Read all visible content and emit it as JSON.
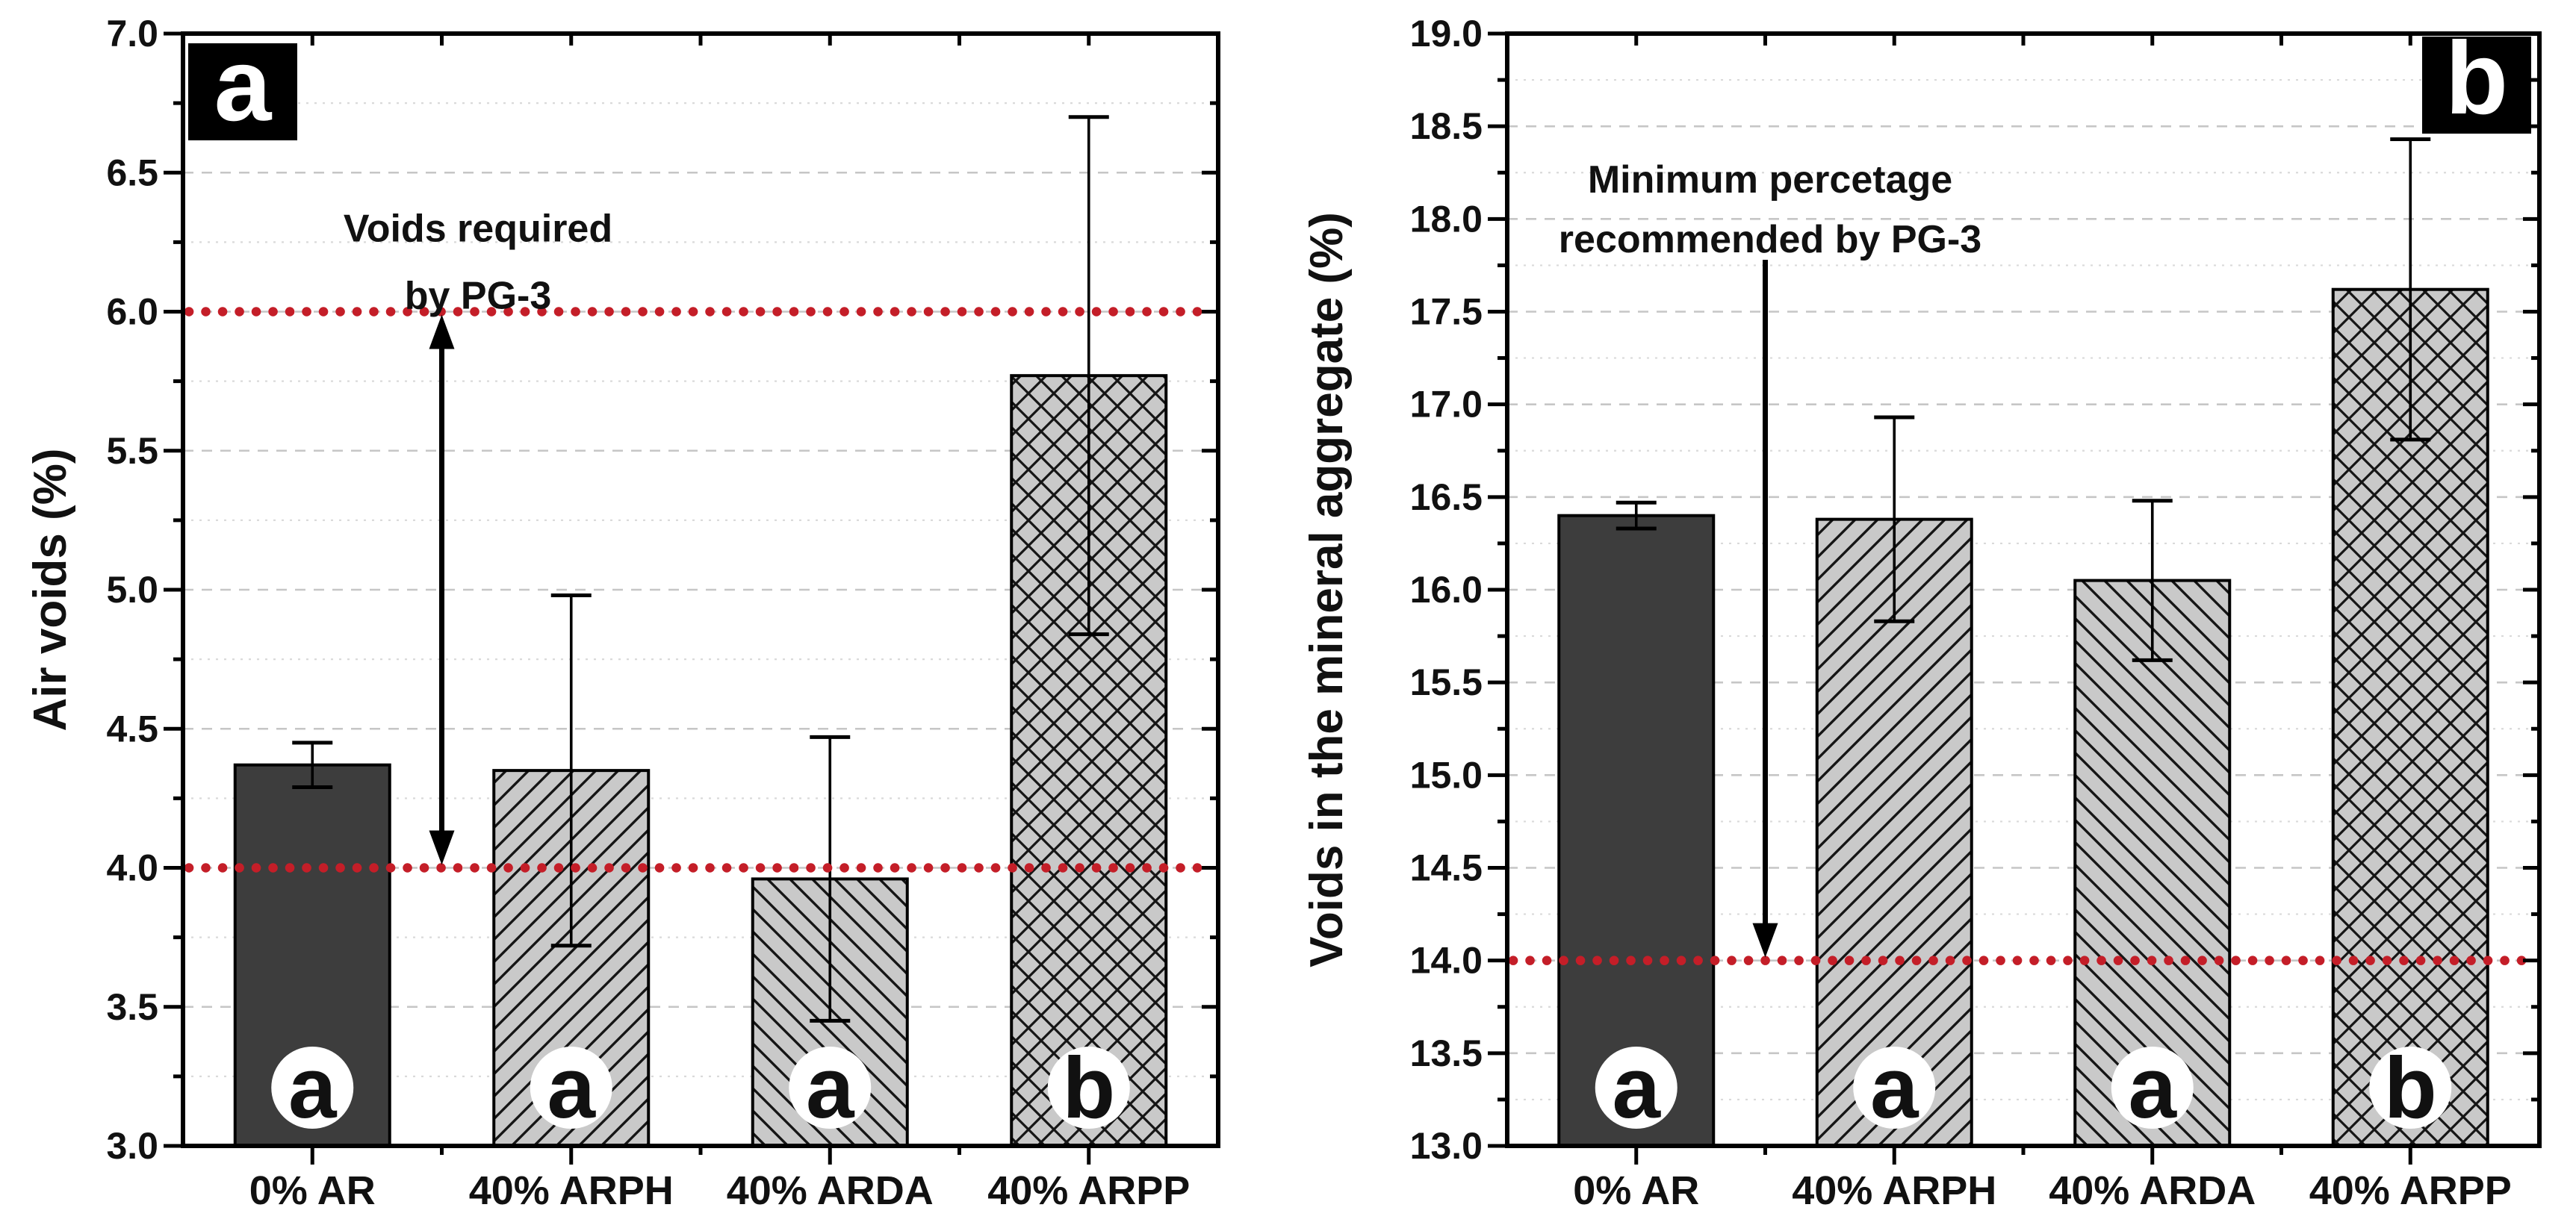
{
  "chart_data": [
    {
      "type": "bar",
      "panel_label": "a",
      "title": "",
      "xlabel": "",
      "ylabel": "Air voids (%)",
      "ylim": [
        3.0,
        7.0
      ],
      "ytick_step": 0.5,
      "yminor_step": 0.25,
      "ytick_labels": [
        "3.0",
        "3.5",
        "4.0",
        "4.5",
        "5.0",
        "5.5",
        "6.0",
        "6.5",
        "7.0"
      ],
      "categories": [
        "0% AR",
        "40% ARPH",
        "40% ARDA",
        "40% ARPP"
      ],
      "values": [
        4.37,
        4.35,
        3.96,
        5.77
      ],
      "errors": [
        0.08,
        0.63,
        0.51,
        0.93
      ],
      "bar_patterns": [
        "solid-dark",
        "hatch-forward",
        "hatch-backward",
        "cross-hatch"
      ],
      "significance_letters": [
        "a",
        "a",
        "a",
        "b"
      ],
      "reference_lines": [
        4.0,
        6.0
      ],
      "annotation_lines": [
        "Voids required",
        "by PG-3"
      ],
      "arrow": {
        "style": "double-headed",
        "between_categories": [
          0,
          1
        ],
        "y_from": 4.0,
        "y_to": 6.0
      },
      "grid": "horizontal major dashed + minor dotted",
      "legend_position": "none"
    },
    {
      "type": "bar",
      "panel_label": "b",
      "title": "",
      "xlabel": "",
      "ylabel": "Voids in the mineral aggregate (%)",
      "ylim": [
        13.0,
        19.0
      ],
      "ytick_step": 0.5,
      "yminor_step": 0.25,
      "ytick_labels": [
        "13.0",
        "13.5",
        "14.0",
        "14.5",
        "15.0",
        "15.5",
        "16.0",
        "16.5",
        "17.0",
        "17.5",
        "18.0",
        "18.5",
        "19.0"
      ],
      "categories": [
        "0% AR",
        "40% ARPH",
        "40% ARDA",
        "40% ARPP"
      ],
      "values": [
        16.4,
        16.38,
        16.05,
        17.62
      ],
      "errors": [
        0.07,
        0.55,
        0.43,
        0.81
      ],
      "bar_patterns": [
        "solid-dark",
        "hatch-forward",
        "hatch-backward",
        "cross-hatch"
      ],
      "significance_letters": [
        "a",
        "a",
        "a",
        "b"
      ],
      "reference_lines": [
        14.0
      ],
      "annotation_lines": [
        "Minimum percetage",
        "recommended by PG-3"
      ],
      "arrow": {
        "style": "single-down",
        "between_categories": [
          0,
          1
        ],
        "y_from": 17.78,
        "y_to": 14.0
      },
      "grid": "horizontal major dashed + minor dotted",
      "legend_position": "none"
    }
  ],
  "style": {
    "background": "#ffffff",
    "bar_fill_dark": "#3d3d3d",
    "bar_fill_light": "#c9c9c9",
    "bar_border": "#000000",
    "hatch_color": "#151515",
    "reference_line_color": "#c41e28",
    "axis_color": "#000000",
    "grid_major_color": "#c6c6c6",
    "grid_minor_color": "#dadada",
    "error_bar_color": "#000000",
    "letter_circle_fill": "#ffffff",
    "letter_color": "#111111",
    "panel_label_bg": "#000000",
    "panel_label_color": "#ffffff",
    "annotation_color": "#111111"
  }
}
